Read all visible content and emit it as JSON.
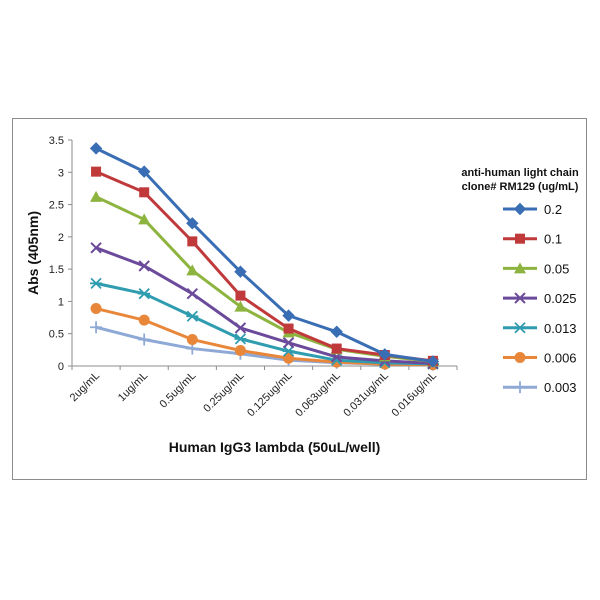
{
  "chart_data": {
    "type": "line",
    "title": "",
    "xlabel": "Human IgG3 lambda (50uL/well)",
    "ylabel": "Abs (405nm)",
    "categories": [
      "2ug/mL",
      "1ug/mL",
      "0.5ug/mL",
      "0.25ug/mL",
      "0.125ug/mL",
      "0.063ug/mL",
      "0.031ug/mL",
      "0.016ug/mL"
    ],
    "ylim": [
      0,
      3.5
    ],
    "yticks": [
      "0",
      "0.5",
      "1",
      "1.5",
      "2",
      "2.5",
      "3",
      "3.5"
    ],
    "grid": false,
    "legend_title_lines": [
      "anti-human light chain",
      "clone# RM129 (ug/mL)"
    ],
    "legend_position": "right",
    "series": [
      {
        "name": "0.2",
        "color": "#3a6eb4",
        "marker": "diamond",
        "values": [
          3.37,
          3.01,
          2.21,
          1.46,
          0.78,
          0.53,
          0.18,
          0.07
        ]
      },
      {
        "name": "0.1",
        "color": "#c0393b",
        "marker": "square",
        "values": [
          3.01,
          2.69,
          1.93,
          1.09,
          0.58,
          0.27,
          0.17,
          0.08
        ]
      },
      {
        "name": "0.05",
        "color": "#8db43f",
        "marker": "triangle",
        "values": [
          2.62,
          2.27,
          1.48,
          0.92,
          0.52,
          0.26,
          0.15,
          0.07
        ]
      },
      {
        "name": "0.025",
        "color": "#6b4a9b",
        "marker": "x",
        "values": [
          1.83,
          1.55,
          1.12,
          0.59,
          0.36,
          0.14,
          0.08,
          0.04
        ]
      },
      {
        "name": "0.013",
        "color": "#2f9cb0",
        "marker": "asterisk",
        "values": [
          1.28,
          1.12,
          0.77,
          0.42,
          0.23,
          0.09,
          0.05,
          0.03
        ]
      },
      {
        "name": "0.006",
        "color": "#e8873a",
        "marker": "circle",
        "values": [
          0.89,
          0.71,
          0.41,
          0.24,
          0.12,
          0.06,
          0.03,
          0.02
        ]
      },
      {
        "name": "0.003",
        "color": "#8fa9d6",
        "marker": "plus",
        "values": [
          0.6,
          0.41,
          0.27,
          0.19,
          0.09,
          0.05,
          0.03,
          0.02
        ]
      }
    ]
  }
}
